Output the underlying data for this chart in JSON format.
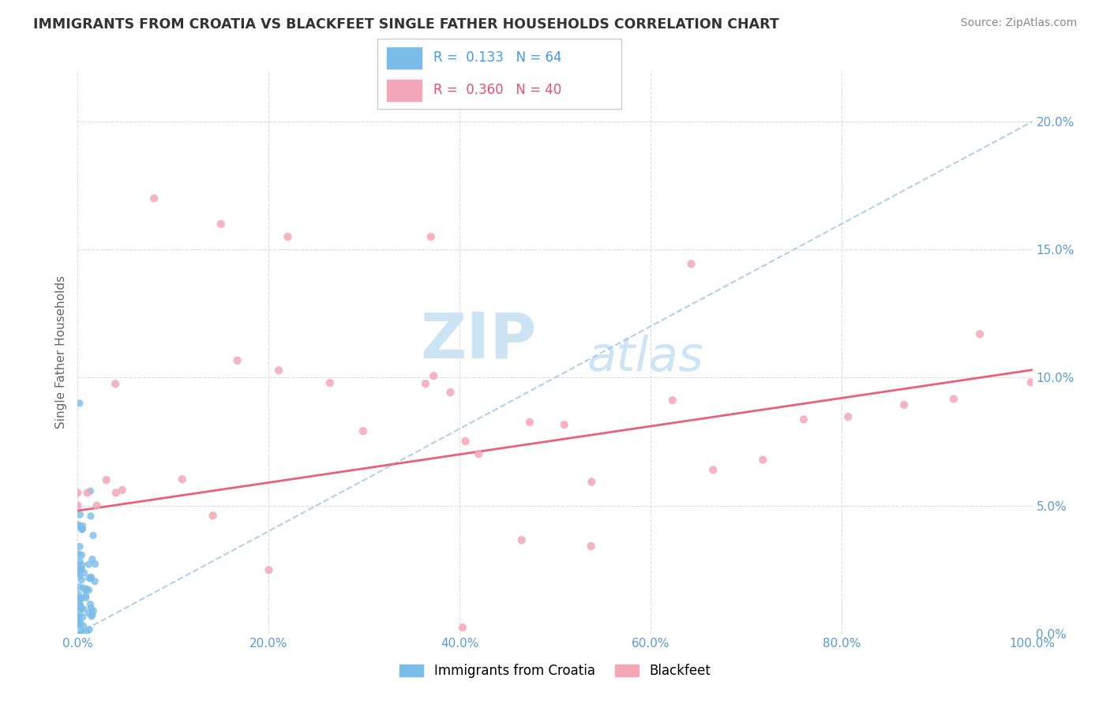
{
  "title": "IMMIGRANTS FROM CROATIA VS BLACKFEET SINGLE FATHER HOUSEHOLDS CORRELATION CHART",
  "source": "Source: ZipAtlas.com",
  "ylabel": "Single Father Households",
  "legend_blue_r": "0.133",
  "legend_blue_n": "64",
  "legend_pink_r": "0.360",
  "legend_pink_n": "40",
  "legend_label1": "Immigrants from Croatia",
  "legend_label2": "Blackfeet",
  "blue_color": "#7bbde8",
  "pink_color": "#f4a7b9",
  "trendline_blue_color": "#a8cce8",
  "trendline_pink_color": "#e8607a",
  "grid_color": "#dddddd",
  "tick_color": "#5b9bd5",
  "x_min": 0.0,
  "x_max": 1.0,
  "y_min": 0.0,
  "y_max": 0.22,
  "blue_r": 0.133,
  "pink_r": 0.36,
  "blue_intercept": 0.0,
  "blue_slope": 0.2,
  "pink_intercept": 0.048,
  "pink_slope": 0.055
}
